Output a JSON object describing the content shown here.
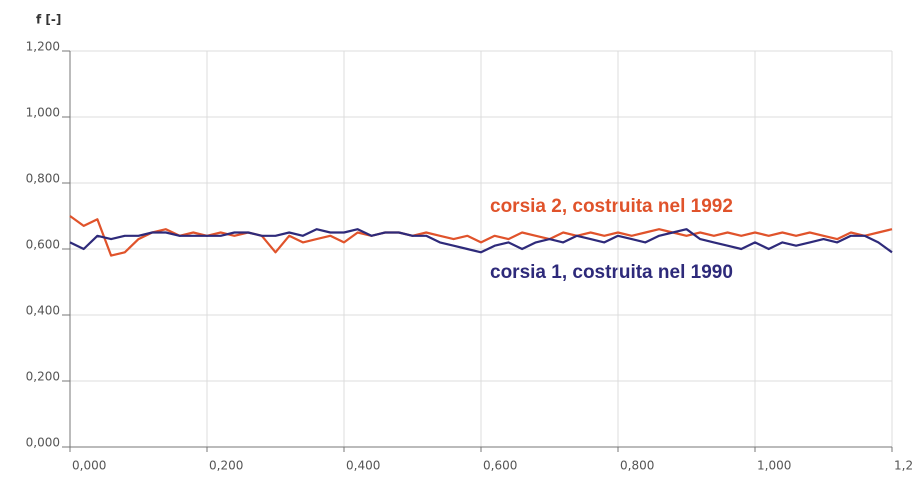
{
  "chart_data": {
    "type": "line",
    "y_label": "f [-]",
    "annotations": [
      "corsia 2, costruita nel 1992",
      "corsia 1, costruita nel 1990"
    ],
    "x": [
      0,
      0.02,
      0.04,
      0.06,
      0.08,
      0.1,
      0.12,
      0.14,
      0.16,
      0.18,
      0.2,
      0.22,
      0.24,
      0.26,
      0.28,
      0.3,
      0.32,
      0.34,
      0.36,
      0.38,
      0.4,
      0.42,
      0.44,
      0.46,
      0.48,
      0.5,
      0.52,
      0.54,
      0.56,
      0.58,
      0.6,
      0.62,
      0.64,
      0.66,
      0.68,
      0.7,
      0.72,
      0.74,
      0.76,
      0.78,
      0.8,
      0.82,
      0.84,
      0.86,
      0.88,
      0.9,
      0.92,
      0.94,
      0.96,
      0.98,
      1,
      1.02,
      1.04,
      1.06,
      1.08,
      1.1,
      1.12,
      1.14,
      1.16,
      1.18,
      1.2
    ],
    "series": [
      {
        "name": "corsia 2",
        "color": "#e0532b",
        "values": [
          0.7,
          0.67,
          0.69,
          0.58,
          0.59,
          0.63,
          0.65,
          0.66,
          0.64,
          0.65,
          0.64,
          0.65,
          0.64,
          0.65,
          0.64,
          0.59,
          0.64,
          0.62,
          0.63,
          0.64,
          0.62,
          0.65,
          0.64,
          0.65,
          0.65,
          0.64,
          0.65,
          0.64,
          0.63,
          0.64,
          0.62,
          0.64,
          0.63,
          0.65,
          0.64,
          0.63,
          0.65,
          0.64,
          0.65,
          0.64,
          0.65,
          0.64,
          0.65,
          0.66,
          0.65,
          0.64,
          0.65,
          0.64,
          0.65,
          0.64,
          0.65,
          0.64,
          0.65,
          0.64,
          0.65,
          0.64,
          0.63,
          0.65,
          0.64,
          0.65,
          0.66
        ]
      },
      {
        "name": "corsia 1",
        "color": "#2e2a7a",
        "values": [
          0.62,
          0.6,
          0.64,
          0.63,
          0.64,
          0.64,
          0.65,
          0.65,
          0.64,
          0.64,
          0.64,
          0.64,
          0.65,
          0.65,
          0.64,
          0.64,
          0.65,
          0.64,
          0.66,
          0.65,
          0.65,
          0.66,
          0.64,
          0.65,
          0.65,
          0.64,
          0.64,
          0.62,
          0.61,
          0.6,
          0.59,
          0.61,
          0.62,
          0.6,
          0.62,
          0.63,
          0.62,
          0.64,
          0.63,
          0.62,
          0.64,
          0.63,
          0.62,
          0.64,
          0.65,
          0.66,
          0.63,
          0.62,
          0.61,
          0.6,
          0.62,
          0.6,
          0.62,
          0.61,
          0.62,
          0.63,
          0.62,
          0.64,
          0.64,
          0.62,
          0.59
        ]
      }
    ],
    "xlim": [
      0,
      1.2
    ],
    "xticks": [
      {
        "value": 0,
        "label": "0,000"
      },
      {
        "value": 0.2,
        "label": "0,200"
      },
      {
        "value": 0.4,
        "label": "0,400"
      },
      {
        "value": 0.6,
        "label": "0,600"
      },
      {
        "value": 0.8,
        "label": "0,800"
      },
      {
        "value": 1,
        "label": "1,000"
      },
      {
        "value": 1.2,
        "label": "1,200"
      }
    ],
    "ylim": [
      0,
      1.2
    ],
    "yticks": [
      {
        "value": 0,
        "label": "0,000"
      },
      {
        "value": 0.2,
        "label": "0,200"
      },
      {
        "value": 0.4,
        "label": "0,400"
      },
      {
        "value": 0.6,
        "label": "0,600"
      },
      {
        "value": 0.8,
        "label": "0,800"
      },
      {
        "value": 1,
        "label": "1,000"
      },
      {
        "value": 1.2,
        "label": "1,200"
      }
    ],
    "grid": true
  }
}
